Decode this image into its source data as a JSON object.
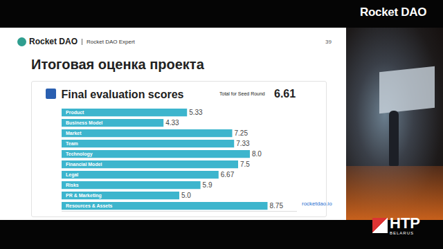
{
  "slide": {
    "logo": "Rocket DAO",
    "section": "Rocket DAO Expert",
    "page": 39,
    "title": "Итоговая оценка проекта",
    "link": "rocketdao.io"
  },
  "overlay": {
    "brand": "Rocket DAO",
    "event": "HTP",
    "event_sub": "BELARUS"
  },
  "chart_data": {
    "type": "bar",
    "title": "Final evaluation scores",
    "total": {
      "label": "Total for Seed Round",
      "value": 6.61
    },
    "orientation": "horizontal",
    "categories": [
      "Product",
      "Business Model",
      "Market",
      "Team",
      "Technology",
      "Financial Model",
      "Legal",
      "Risks",
      "PR & Marketing",
      "Resources & Assets"
    ],
    "values": [
      5.33,
      4.33,
      7.25,
      7.33,
      8.0,
      7.5,
      6.67,
      5.9,
      5.0,
      8.75
    ],
    "value_labels": [
      "5.33",
      "4.33",
      "7.25",
      "7.33",
      "8.0",
      "7.5",
      "6.67",
      "5.9",
      "5.0",
      "8.75"
    ],
    "color": "#3db5cd",
    "xlim": [
      0,
      10
    ],
    "data_labels": true,
    "tick_labels": false,
    "grid": false
  }
}
